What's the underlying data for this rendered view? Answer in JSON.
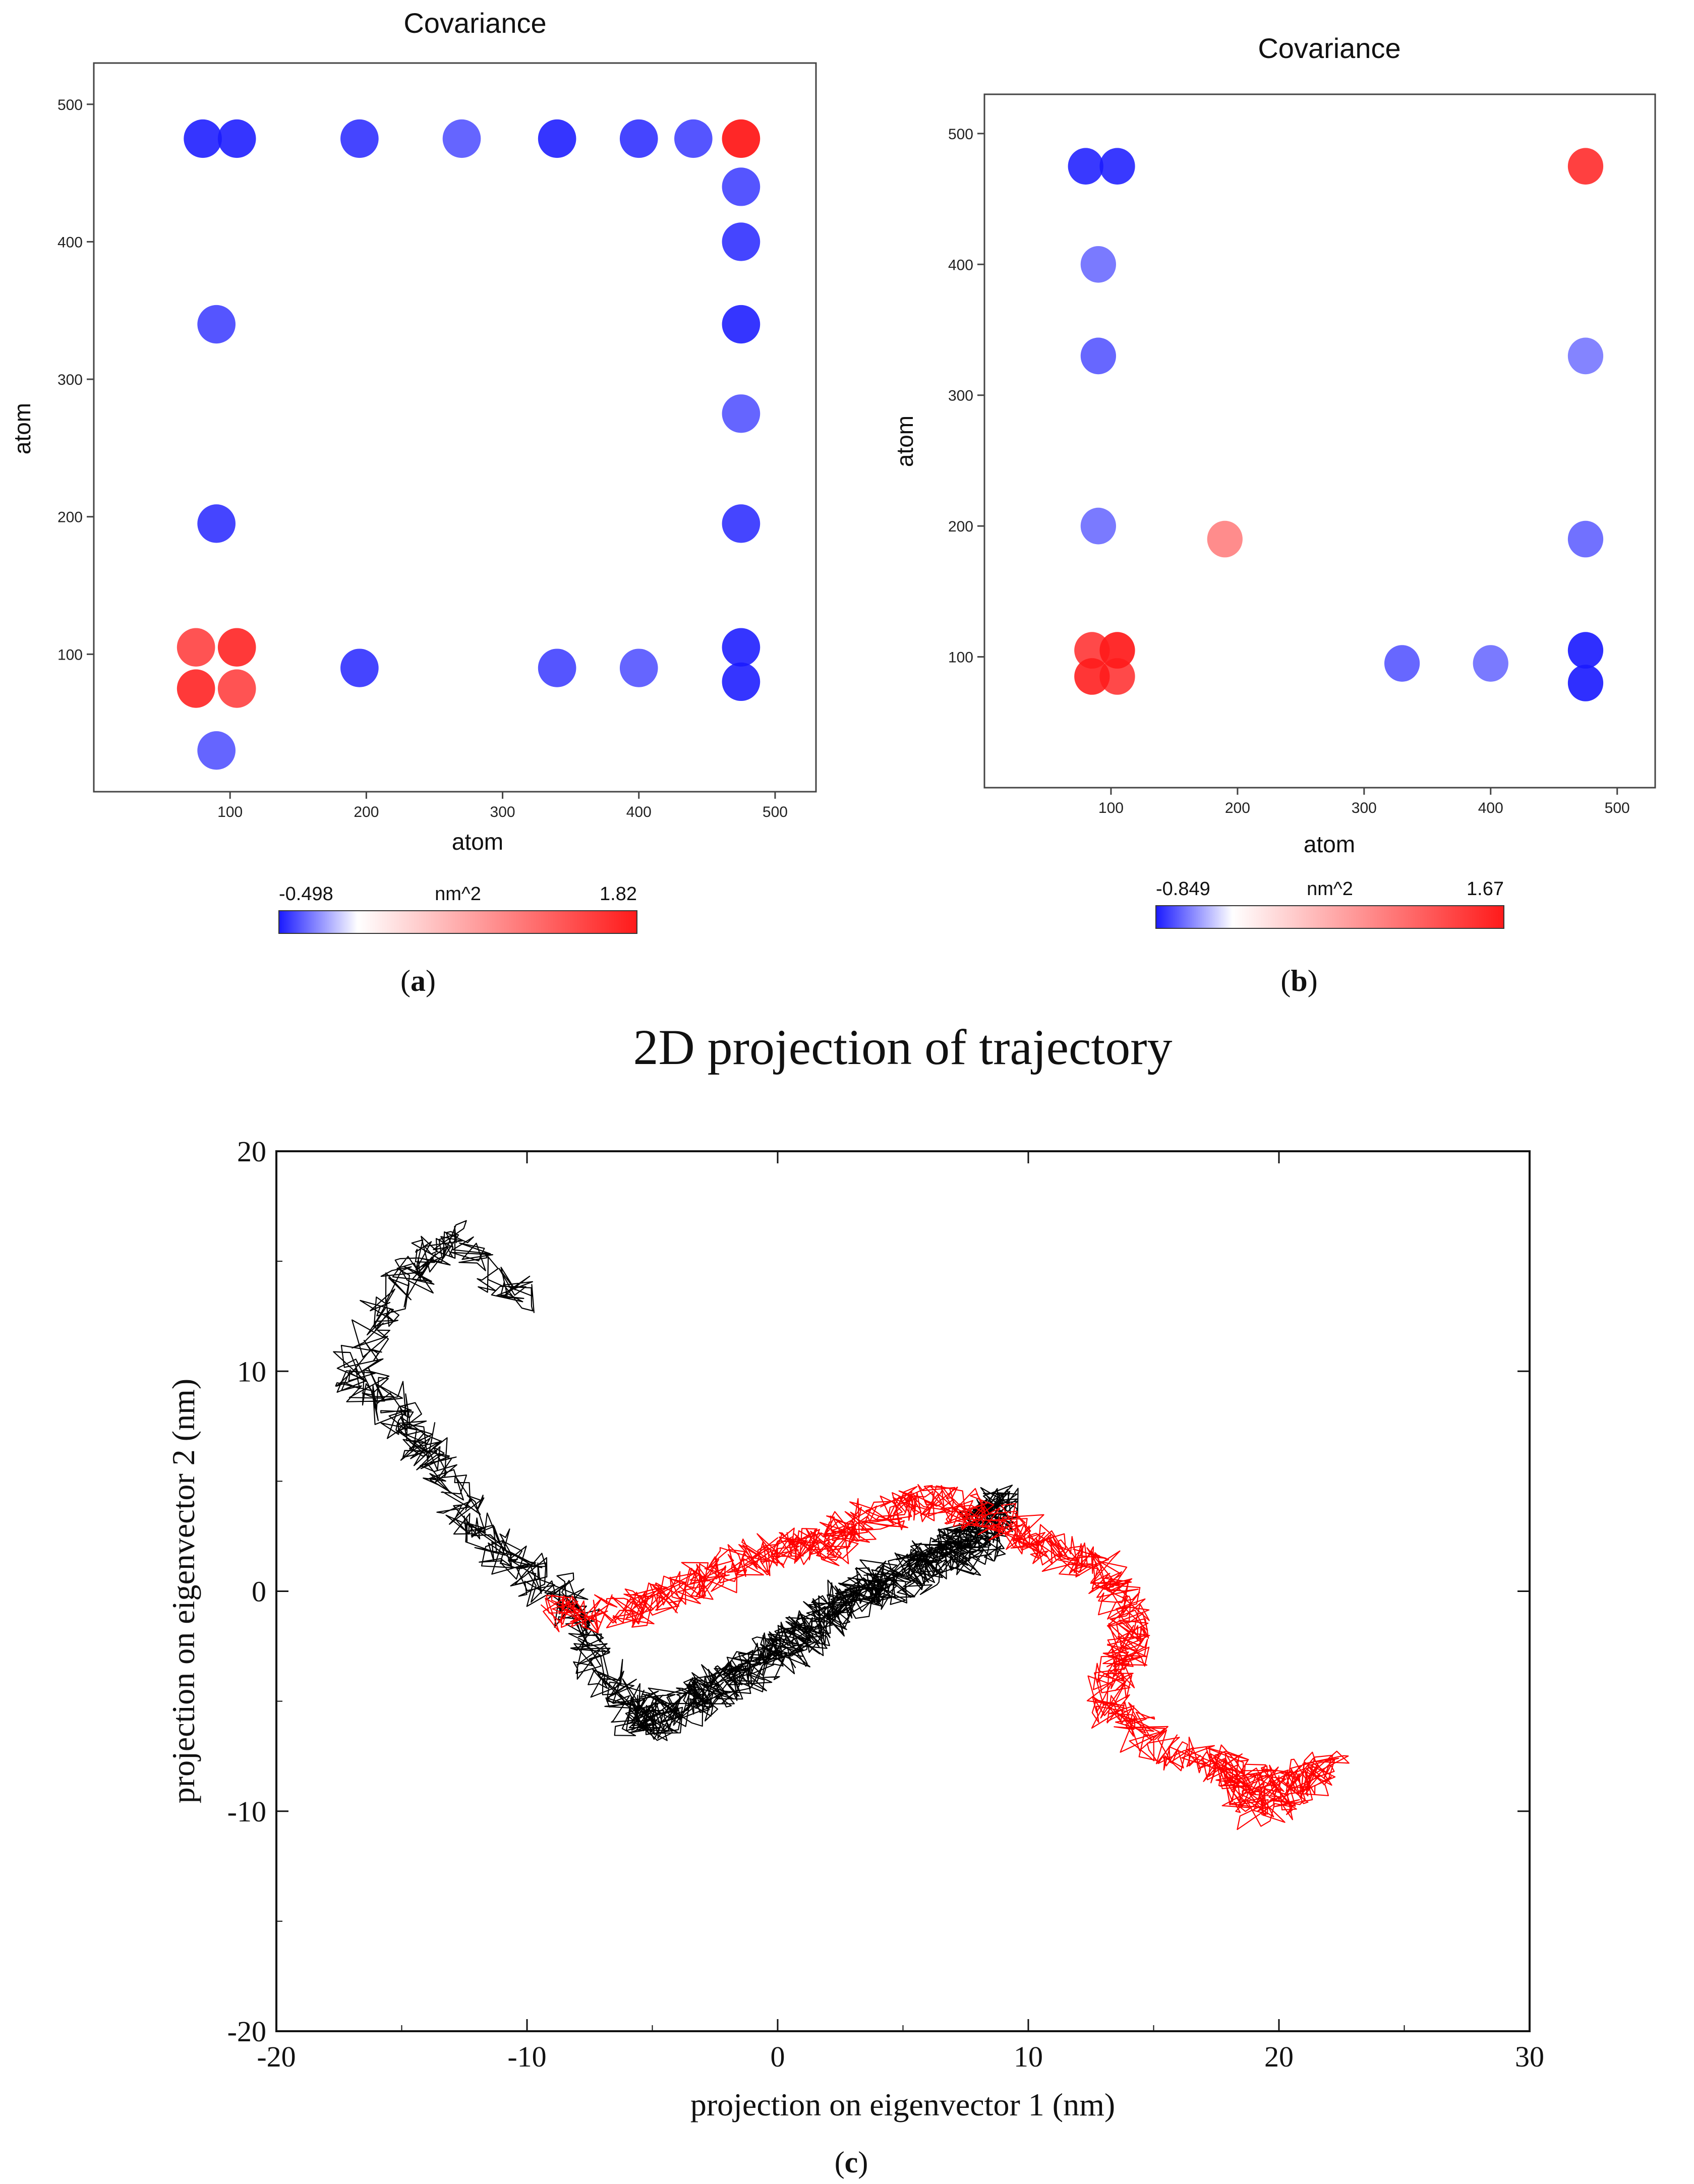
{
  "colors": {
    "negative": "#1a1aff",
    "zero": "#ffffff",
    "positive": "#ff1a1a",
    "series1": "#000000",
    "series2": "#ff0000"
  },
  "chart_data": [
    {
      "type": "heatmap",
      "panel_label": "a",
      "title": "Covariance",
      "xlabel": "atom",
      "ylabel": "atom",
      "xlim": [
        0,
        530
      ],
      "ylim": [
        0,
        530
      ],
      "xticks": [
        "100",
        "200",
        "300",
        "400",
        "500"
      ],
      "yticks": [
        "100",
        "200",
        "300",
        "400",
        "500"
      ],
      "colorbar": {
        "min": "-0.498",
        "max": "1.82",
        "unit": "nm^2"
      },
      "hotspots": [
        {
          "x": 75,
          "y": 75,
          "v": 1.6
        },
        {
          "x": 105,
          "y": 75,
          "v": 1.3
        },
        {
          "x": 75,
          "y": 105,
          "v": 1.3
        },
        {
          "x": 105,
          "y": 105,
          "v": 1.6
        },
        {
          "x": 475,
          "y": 475,
          "v": 1.8
        },
        {
          "x": 80,
          "y": 475,
          "v": -0.45
        },
        {
          "x": 105,
          "y": 475,
          "v": -0.45
        },
        {
          "x": 195,
          "y": 475,
          "v": -0.4
        },
        {
          "x": 270,
          "y": 475,
          "v": -0.3
        },
        {
          "x": 340,
          "y": 475,
          "v": -0.45
        },
        {
          "x": 400,
          "y": 475,
          "v": -0.4
        },
        {
          "x": 440,
          "y": 475,
          "v": -0.35
        },
        {
          "x": 475,
          "y": 80,
          "v": -0.45
        },
        {
          "x": 475,
          "y": 105,
          "v": -0.45
        },
        {
          "x": 475,
          "y": 195,
          "v": -0.4
        },
        {
          "x": 475,
          "y": 275,
          "v": -0.3
        },
        {
          "x": 475,
          "y": 340,
          "v": -0.45
        },
        {
          "x": 475,
          "y": 400,
          "v": -0.4
        },
        {
          "x": 475,
          "y": 440,
          "v": -0.35
        },
        {
          "x": 90,
          "y": 195,
          "v": -0.4
        },
        {
          "x": 90,
          "y": 340,
          "v": -0.35
        },
        {
          "x": 195,
          "y": 90,
          "v": -0.4
        },
        {
          "x": 340,
          "y": 90,
          "v": -0.35
        },
        {
          "x": 400,
          "y": 90,
          "v": -0.3
        },
        {
          "x": 90,
          "y": 30,
          "v": -0.3
        }
      ]
    },
    {
      "type": "heatmap",
      "panel_label": "b",
      "title": "Covariance",
      "xlabel": "atom",
      "ylabel": "atom",
      "xlim": [
        0,
        530
      ],
      "ylim": [
        0,
        530
      ],
      "xticks": [
        "100",
        "200",
        "300",
        "400",
        "500"
      ],
      "yticks": [
        "100",
        "200",
        "300",
        "400",
        "500"
      ],
      "colorbar": {
        "min": "-0.849",
        "max": "1.67",
        "unit": "nm^2"
      },
      "hotspots": [
        {
          "x": 85,
          "y": 85,
          "v": 1.5
        },
        {
          "x": 105,
          "y": 105,
          "v": 1.6
        },
        {
          "x": 85,
          "y": 105,
          "v": 1.3
        },
        {
          "x": 105,
          "y": 85,
          "v": 1.3
        },
        {
          "x": 475,
          "y": 475,
          "v": 1.4
        },
        {
          "x": 80,
          "y": 475,
          "v": -0.75
        },
        {
          "x": 105,
          "y": 475,
          "v": -0.75
        },
        {
          "x": 475,
          "y": 105,
          "v": -0.8
        },
        {
          "x": 475,
          "y": 80,
          "v": -0.8
        },
        {
          "x": 190,
          "y": 190,
          "v": 0.6
        },
        {
          "x": 90,
          "y": 330,
          "v": -0.5
        },
        {
          "x": 90,
          "y": 400,
          "v": -0.4
        },
        {
          "x": 90,
          "y": 200,
          "v": -0.4
        },
        {
          "x": 330,
          "y": 95,
          "v": -0.5
        },
        {
          "x": 400,
          "y": 95,
          "v": -0.4
        },
        {
          "x": 475,
          "y": 190,
          "v": -0.45
        },
        {
          "x": 475,
          "y": 330,
          "v": -0.35
        }
      ]
    },
    {
      "type": "line",
      "panel_label": "c",
      "title": "2D projection of trajectory",
      "xlabel": "projection on eigenvector 1 (nm)",
      "ylabel": "projection on eigenvector 2 (nm)",
      "xlim": [
        -20,
        30
      ],
      "ylim": [
        -20,
        20
      ],
      "xticks": [
        "-20",
        "-10",
        "0",
        "10",
        "20",
        "30"
      ],
      "yticks": [
        "-20",
        "-10",
        "0",
        "10",
        "20"
      ],
      "series": [
        {
          "name": "black trajectory",
          "waypoints": [
            [
              -10,
              13
            ],
            [
              -13,
              16
            ],
            [
              -15,
              14
            ],
            [
              -17,
              10
            ],
            [
              -15,
              8
            ],
            [
              -14,
              6
            ],
            [
              -12,
              3
            ],
            [
              -10,
              1
            ],
            [
              -8,
              -1
            ],
            [
              -7,
              -4
            ],
            [
              -5,
              -6
            ],
            [
              -3,
              -5
            ],
            [
              -1,
              -3
            ],
            [
              1,
              -2
            ],
            [
              3,
              0
            ],
            [
              5,
              1
            ],
            [
              7,
              2
            ],
            [
              8,
              3
            ],
            [
              9,
              4
            ],
            [
              8,
              2
            ],
            [
              6,
              1
            ],
            [
              4,
              0
            ],
            [
              2,
              -1
            ],
            [
              0,
              -3
            ],
            [
              -2,
              -4
            ],
            [
              -4,
              -5
            ],
            [
              -6,
              -6
            ]
          ]
        },
        {
          "name": "red trajectory",
          "waypoints": [
            [
              -9,
              -1
            ],
            [
              -6,
              -1
            ],
            [
              -4,
              0
            ],
            [
              -2,
              1
            ],
            [
              0,
              2
            ],
            [
              2,
              2
            ],
            [
              3,
              3
            ],
            [
              5,
              4
            ],
            [
              7,
              4
            ],
            [
              9,
              3
            ],
            [
              11,
              2
            ],
            [
              13,
              1
            ],
            [
              14,
              -1
            ],
            [
              14,
              -3
            ],
            [
              13,
              -5
            ],
            [
              15,
              -7
            ],
            [
              18,
              -8
            ],
            [
              20,
              -9
            ],
            [
              22,
              -8
            ],
            [
              19,
              -10
            ],
            [
              18,
              -8
            ]
          ]
        }
      ]
    }
  ]
}
